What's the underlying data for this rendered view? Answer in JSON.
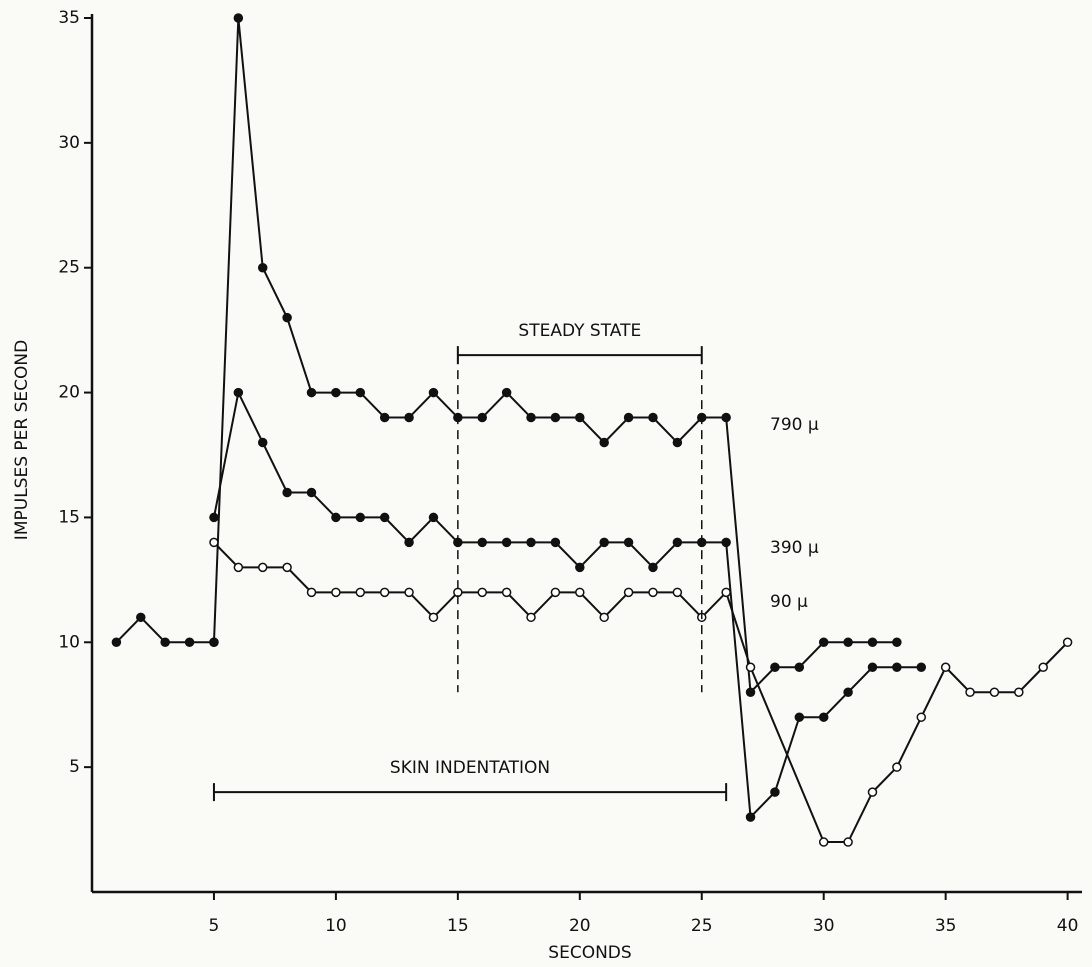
{
  "chart_data": {
    "type": "line",
    "x_label": "SECONDS",
    "y_label": "IMPULSES PER SECOND",
    "xlim": [
      0,
      41
    ],
    "xticks": [
      5,
      10,
      15,
      20,
      25,
      30,
      35,
      40
    ],
    "ylim": [
      0,
      35
    ],
    "yticks": [
      5,
      10,
      15,
      20,
      25,
      30,
      35
    ],
    "color": "#111111",
    "series": [
      {
        "x": [
          1,
          2,
          3,
          4,
          5
        ],
        "values": [
          10,
          11,
          10,
          10,
          10
        ],
        "marker": "filled"
      },
      {
        "name": "790 μ",
        "marker": "filled",
        "x": [
          5,
          6,
          7,
          8,
          9,
          10,
          11,
          12,
          13,
          14,
          15,
          16,
          17,
          18,
          19,
          20,
          21,
          22,
          23,
          24,
          25,
          26,
          27,
          28,
          29,
          30,
          31,
          32,
          33
        ],
        "values": [
          10,
          35,
          25,
          23,
          20,
          20,
          20,
          19,
          19,
          20,
          19,
          19,
          20,
          19,
          19,
          19,
          18,
          19,
          19,
          18,
          19,
          19,
          8,
          9,
          9,
          10,
          10,
          10,
          10
        ]
      },
      {
        "name": "390 μ",
        "marker": "filled",
        "x": [
          5,
          6,
          7,
          8,
          9,
          10,
          11,
          12,
          13,
          14,
          15,
          16,
          17,
          18,
          19,
          20,
          21,
          22,
          23,
          24,
          25,
          26,
          27,
          28,
          29,
          30,
          31,
          32,
          33,
          34
        ],
        "values": [
          15,
          20,
          18,
          16,
          16,
          15,
          15,
          15,
          14,
          15,
          14,
          14,
          14,
          14,
          14,
          13,
          14,
          14,
          13,
          14,
          14,
          14,
          3,
          4,
          7,
          7,
          8,
          9,
          9,
          9
        ]
      },
      {
        "name": "90 μ",
        "marker": "open",
        "x": [
          5,
          6,
          7,
          8,
          9,
          10,
          11,
          12,
          13,
          14,
          15,
          16,
          17,
          18,
          19,
          20,
          21,
          22,
          23,
          24,
          25,
          26,
          27,
          30,
          31,
          32,
          33,
          34,
          35,
          36,
          37,
          38,
          39,
          40
        ],
        "values": [
          14,
          13,
          13,
          13,
          12,
          12,
          12,
          12,
          12,
          11,
          12,
          12,
          12,
          11,
          12,
          12,
          11,
          12,
          12,
          12,
          11,
          12,
          9,
          2,
          2,
          4,
          5,
          7,
          9,
          8,
          8,
          8,
          9,
          10
        ]
      }
    ],
    "annotations": [
      {
        "text": "STEADY STATE",
        "start": 15,
        "end": 25,
        "y": 21.5,
        "drop_to": 8
      },
      {
        "text": "SKIN INDENTATION",
        "start": 5,
        "end": 26,
        "y": 4
      }
    ]
  }
}
